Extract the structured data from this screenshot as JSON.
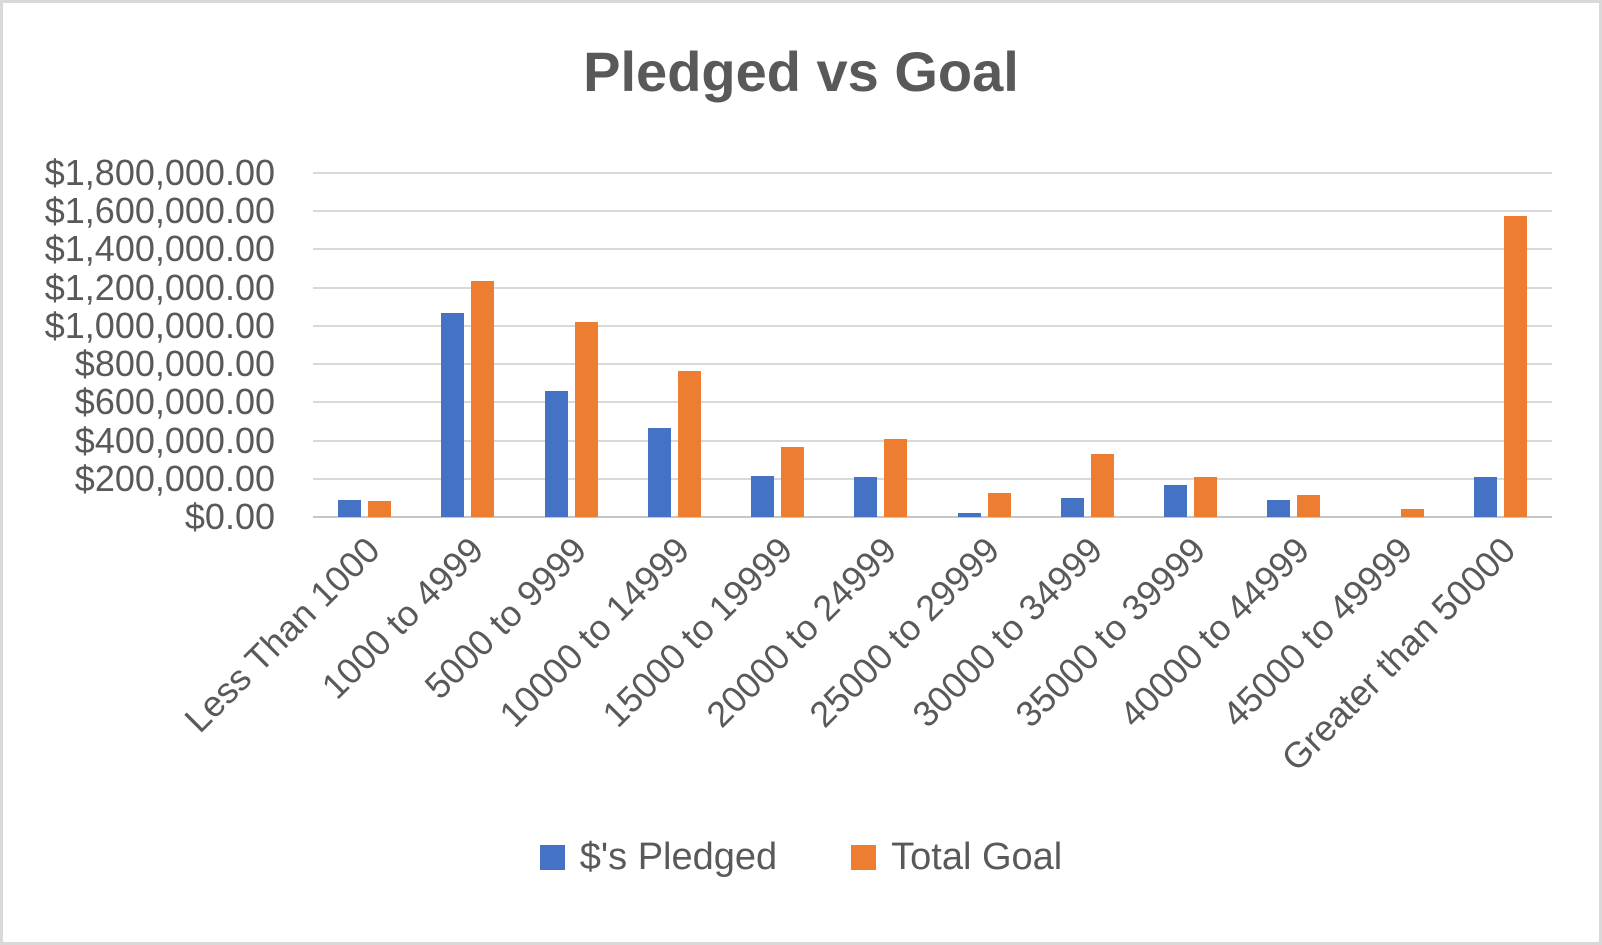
{
  "title": "Pledged vs Goal",
  "chart_data": {
    "type": "bar",
    "title": "Pledged vs Goal",
    "categories": [
      "Less Than 1000",
      "1000 to 4999",
      "5000 to 9999",
      "10000 to 14999",
      "15000 to 19999",
      "20000 to 24999",
      "25000 to 29999",
      "30000 to 34999",
      "35000 to 39999",
      "40000 to 44999",
      "45000 to 49999",
      "Greater than 50000"
    ],
    "series": [
      {
        "name": "$'s Pledged",
        "color": "#4472C4",
        "values": [
          90000,
          1070000,
          660000,
          465000,
          215000,
          210000,
          20000,
          100000,
          170000,
          90000,
          0,
          210000
        ]
      },
      {
        "name": "Total Goal",
        "color": "#ED7D31",
        "values": [
          85000,
          1235000,
          1020000,
          765000,
          365000,
          410000,
          125000,
          330000,
          210000,
          115000,
          40000,
          1575000
        ]
      }
    ],
    "xlabel": "",
    "ylabel": "",
    "ylim": [
      0,
      1800000
    ],
    "y_tick_step": 200000,
    "y_ticks": [
      {
        "value": 0,
        "label": "$0.00"
      },
      {
        "value": 200000,
        "label": "$200,000.00"
      },
      {
        "value": 400000,
        "label": "$400,000.00"
      },
      {
        "value": 600000,
        "label": "$600,000.00"
      },
      {
        "value": 800000,
        "label": "$800,000.00"
      },
      {
        "value": 1000000,
        "label": "$1,000,000.00"
      },
      {
        "value": 1200000,
        "label": "$1,200,000.00"
      },
      {
        "value": 1400000,
        "label": "$1,400,000.00"
      },
      {
        "value": 1600000,
        "label": "$1,600,000.00"
      },
      {
        "value": 1800000,
        "label": "$1,800,000.00"
      }
    ],
    "grid": true,
    "legend_position": "bottom"
  },
  "colors": {
    "pledged": "#4472C4",
    "goal": "#ED7D31",
    "gridline": "#d9d9d9",
    "axis_line": "#c6c6c6",
    "text": "#595959",
    "border": "#d9d9d9"
  }
}
